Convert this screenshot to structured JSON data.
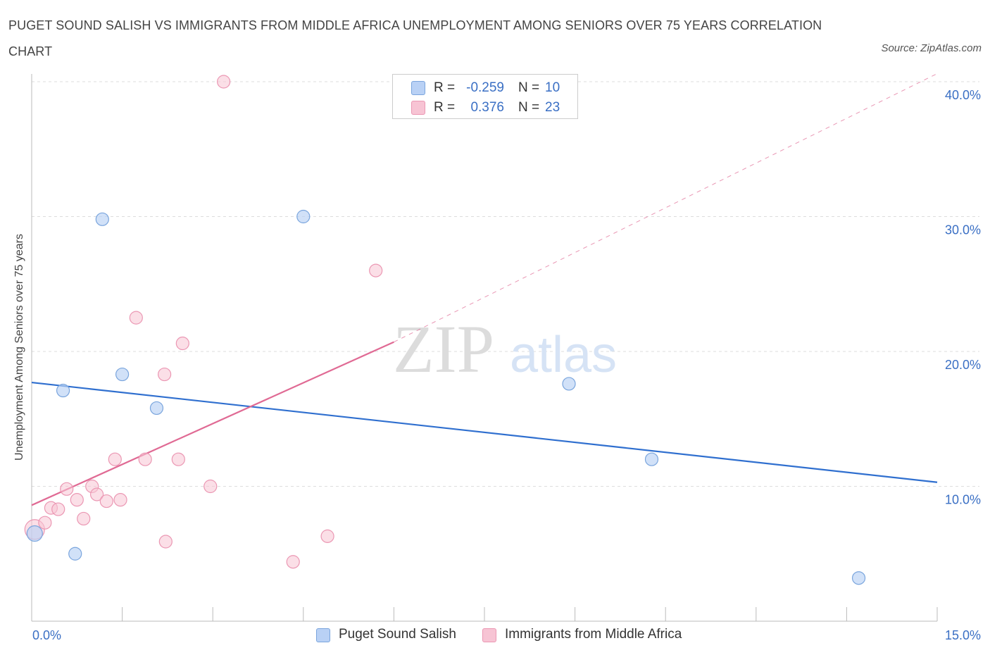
{
  "title": "PUGET SOUND SALISH VS IMMIGRANTS FROM MIDDLE AFRICA UNEMPLOYMENT AMONG SENIORS OVER 75 YEARS CORRELATION CHART",
  "source": "Source: ZipAtlas.com",
  "watermark": {
    "zip": "ZIP",
    "atlas": "atlas"
  },
  "colors": {
    "blue_fill": "#b9d1f5",
    "blue_stroke": "#7aa5dd",
    "blue_line": "#2f6fcf",
    "pink_fill": "#f7c4d4",
    "pink_stroke": "#eb97b3",
    "pink_line": "#e06a94",
    "axis_label": "#3a6fc4",
    "grid": "#dddddd"
  },
  "legend": {
    "rows": [
      {
        "r_label": "R =",
        "r_value": "-0.259",
        "n_label": "N =",
        "n_value": "10"
      },
      {
        "r_label": "R =",
        "r_value": "0.376",
        "n_label": "N =",
        "n_value": "23"
      }
    ]
  },
  "chart_data": {
    "type": "scatter",
    "title": "PUGET SOUND SALISH VS IMMIGRANTS FROM MIDDLE AFRICA UNEMPLOYMENT AMONG SENIORS OVER 75 YEARS CORRELATION CHART",
    "xlabel": "",
    "ylabel": "Unemployment Among Seniors over 75 years",
    "xlim": [
      0,
      15
    ],
    "ylim": [
      0,
      40
    ],
    "x_tick_labels": [
      "0.0%",
      "15.0%"
    ],
    "y_ticks": [
      10,
      20,
      30,
      40
    ],
    "y_tick_labels": [
      "10.0%",
      "20.0%",
      "30.0%",
      "40.0%"
    ],
    "grid": true,
    "legend_position": "top-center",
    "series": [
      {
        "name": "Puget Sound Salish",
        "color": "#b9d1f5",
        "points": [
          {
            "x": 0.05,
            "y": 6.5
          },
          {
            "x": 0.52,
            "y": 17.1
          },
          {
            "x": 0.72,
            "y": 5.0
          },
          {
            "x": 1.17,
            "y": 29.8
          },
          {
            "x": 1.5,
            "y": 18.3
          },
          {
            "x": 2.07,
            "y": 15.8
          },
          {
            "x": 4.5,
            "y": 30.0
          },
          {
            "x": 8.9,
            "y": 17.6
          },
          {
            "x": 10.27,
            "y": 12.0
          },
          {
            "x": 13.7,
            "y": 3.2
          }
        ],
        "trend": {
          "x": [
            0,
            15
          ],
          "y": [
            17.7,
            10.3
          ],
          "dashed_extension": false
        }
      },
      {
        "name": "Immigrants from Middle Africa",
        "color": "#f7c4d4",
        "points": [
          {
            "x": 0.05,
            "y": 6.8
          },
          {
            "x": 0.22,
            "y": 7.3
          },
          {
            "x": 0.32,
            "y": 8.4
          },
          {
            "x": 0.44,
            "y": 8.3
          },
          {
            "x": 0.58,
            "y": 9.8
          },
          {
            "x": 0.75,
            "y": 9.0
          },
          {
            "x": 0.86,
            "y": 7.6
          },
          {
            "x": 1.0,
            "y": 10.0
          },
          {
            "x": 1.08,
            "y": 9.4
          },
          {
            "x": 1.24,
            "y": 8.9
          },
          {
            "x": 1.38,
            "y": 12.0
          },
          {
            "x": 1.47,
            "y": 9.0
          },
          {
            "x": 1.73,
            "y": 22.5
          },
          {
            "x": 1.88,
            "y": 12.0
          },
          {
            "x": 2.2,
            "y": 18.3
          },
          {
            "x": 2.22,
            "y": 5.9
          },
          {
            "x": 2.43,
            "y": 12.0
          },
          {
            "x": 2.5,
            "y": 20.6
          },
          {
            "x": 2.96,
            "y": 10.0
          },
          {
            "x": 3.18,
            "y": 40.0
          },
          {
            "x": 4.33,
            "y": 4.4
          },
          {
            "x": 4.9,
            "y": 6.3
          },
          {
            "x": 5.7,
            "y": 26.0
          }
        ],
        "trend": {
          "x": [
            0,
            6
          ],
          "y": [
            8.6,
            20.7
          ],
          "dashed_extension": {
            "x": [
              6,
              15
            ],
            "y": [
              20.7,
              40.6
            ]
          }
        }
      }
    ]
  }
}
